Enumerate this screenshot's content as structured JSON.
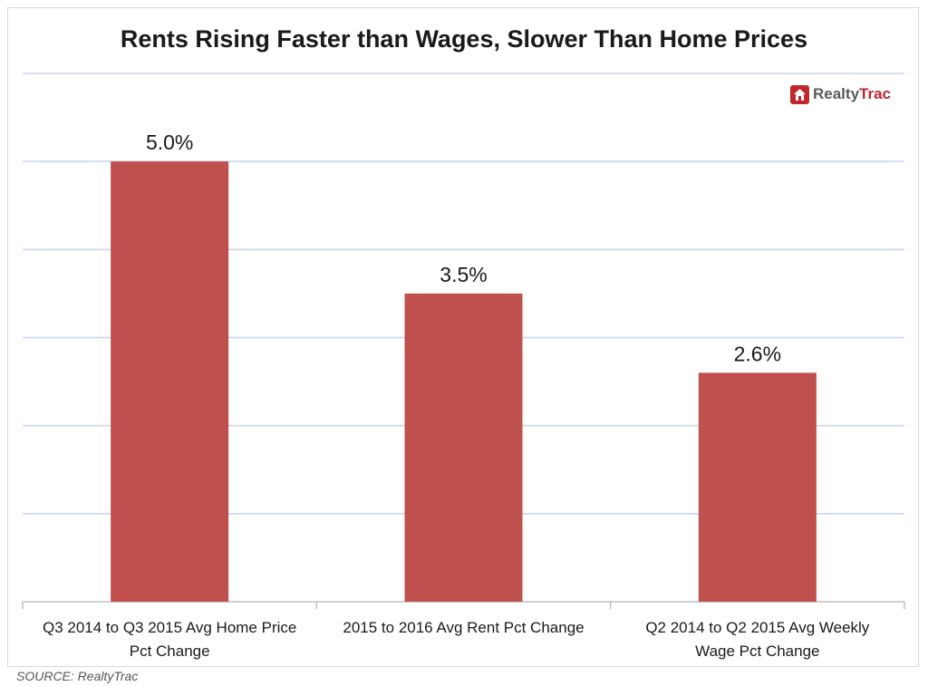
{
  "chart_data": {
    "type": "bar",
    "title": "Rents Rising Faster than Wages, Slower Than Home Prices",
    "categories": [
      [
        "Q3 2014 to Q3 2015 Avg Home Price",
        "Pct Change"
      ],
      [
        "2015 to 2016 Avg Rent Pct Change"
      ],
      [
        "Q2 2014 to Q2 2015 Avg Weekly",
        "Wage Pct Change"
      ]
    ],
    "values": [
      5.0,
      3.5,
      2.6
    ],
    "data_labels": [
      "5.0%",
      "3.5%",
      "2.6%"
    ],
    "ylim": [
      0,
      6
    ],
    "y_grid_step": 1,
    "grid": true,
    "bar_color": "#c0504d",
    "grid_color": "#c5d3ea"
  },
  "logo": {
    "text_main": "Realty",
    "text_accent": "Trac"
  },
  "source": "SOURCE:  RealtyTrac"
}
